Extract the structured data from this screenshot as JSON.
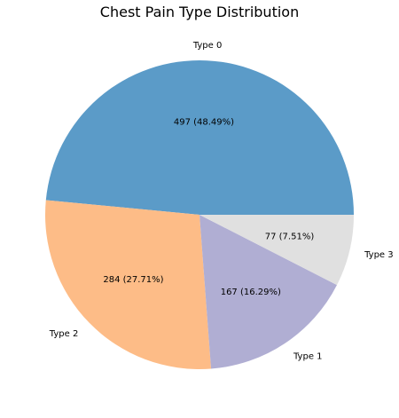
{
  "chart_data": {
    "type": "pie",
    "title": "Chest Pain Type Distribution",
    "slices": [
      {
        "label": "Type 0",
        "value": 497,
        "percent_text": "497 (48.49%)",
        "color": "#5b9bc8"
      },
      {
        "label": "Type 2",
        "value": 284,
        "percent_text": "284 (27.71%)",
        "color": "#fdbc87"
      },
      {
        "label": "Type 1",
        "value": 167,
        "percent_text": "167 (16.29%)",
        "color": "#b0aed3"
      },
      {
        "label": "Type 3",
        "value": 77,
        "percent_text": "77 (7.51%)",
        "color": "#e0e0e0"
      }
    ],
    "start_angle_deg": 0,
    "direction": "counterclockwise"
  }
}
